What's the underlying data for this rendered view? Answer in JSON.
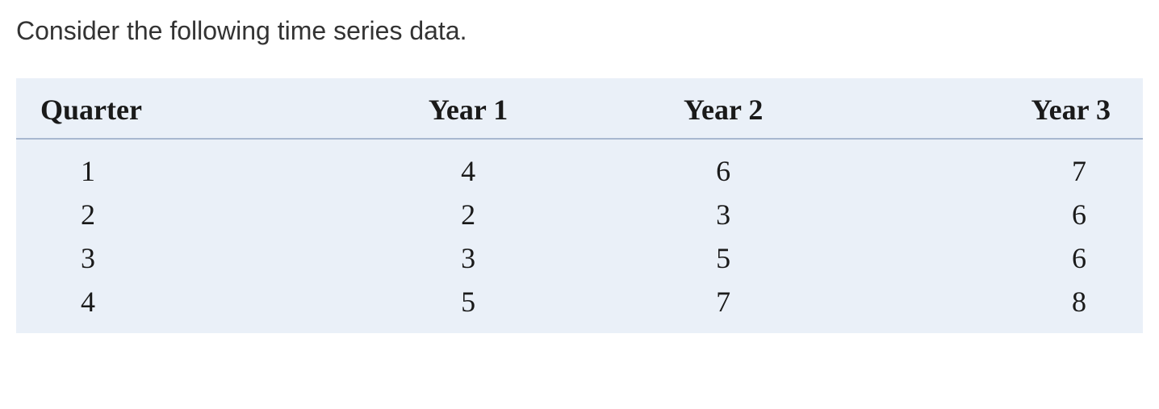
{
  "intro_text": "Consider the following time series data.",
  "table": {
    "columns": [
      "Quarter",
      "Year 1",
      "Year 2",
      "Year 3"
    ],
    "rows": [
      [
        "1",
        "4",
        "6",
        "7"
      ],
      [
        "2",
        "2",
        "3",
        "6"
      ],
      [
        "3",
        "3",
        "5",
        "6"
      ],
      [
        "4",
        "5",
        "7",
        "8"
      ]
    ],
    "background_color": "#eaf0f8",
    "header_border_color": "#a8b8d0",
    "text_color": "#1a1a1a",
    "header_font_family": "Times New Roman",
    "body_font_family": "Times New Roman",
    "intro_font_family": "Verdana",
    "header_fontsize": 36,
    "body_fontsize": 36,
    "intro_fontsize": 32
  }
}
